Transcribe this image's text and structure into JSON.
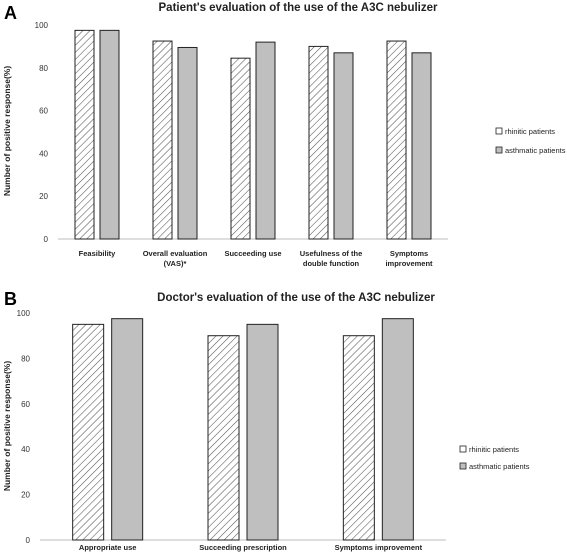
{
  "chart_data": [
    {
      "type": "bar",
      "panel_label": "A",
      "title": "Patient's evaluation of the use of the A3C nebulizer",
      "xlabel": "",
      "ylabel": "Number of positive response(%)",
      "ylim": [
        0,
        100
      ],
      "yticks": [
        0,
        20,
        40,
        60,
        80,
        100
      ],
      "grid": false,
      "legend_position": "right",
      "categories": [
        [
          "Feasibility"
        ],
        [
          "Overall evaluation",
          "(VAS)*"
        ],
        [
          "Succeeding use"
        ],
        [
          "Usefulness of the",
          "double function"
        ],
        [
          "Symptoms",
          "improvement"
        ]
      ],
      "series": [
        {
          "name": "rhinitic patients",
          "pattern": "hatched",
          "color": "#ffffff",
          "values": [
            97.5,
            92.5,
            84.5,
            90,
            92.5
          ]
        },
        {
          "name": "asthmatic patients",
          "pattern": "solid",
          "color": "#bfbfbf",
          "values": [
            97.5,
            89.5,
            92,
            87,
            87
          ]
        }
      ]
    },
    {
      "type": "bar",
      "panel_label": "B",
      "title": "Doctor's evaluation of the use of the A3C nebulizer",
      "xlabel": "",
      "ylabel": "Number  of positive response(%)",
      "ylim": [
        0,
        100
      ],
      "yticks": [
        0,
        20,
        40,
        60,
        80,
        100
      ],
      "grid": false,
      "legend_position": "right",
      "categories": [
        [
          "Appropriate use"
        ],
        [
          "Succeeding prescription"
        ],
        [
          "Symptoms improvement"
        ]
      ],
      "series": [
        {
          "name": "rhinitic patients",
          "pattern": "hatched",
          "color": "#ffffff",
          "values": [
            95,
            90,
            90
          ]
        },
        {
          "name": "asthmatic patients",
          "pattern": "solid",
          "color": "#bfbfbf",
          "values": [
            97.5,
            95,
            97.5
          ]
        }
      ]
    }
  ]
}
